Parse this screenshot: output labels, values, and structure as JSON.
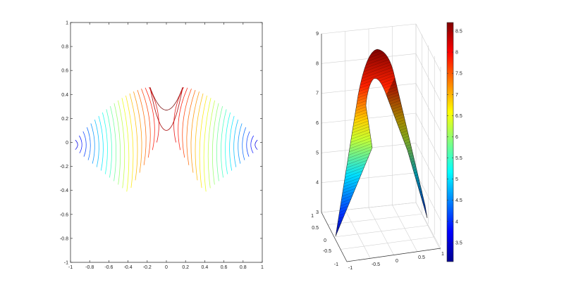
{
  "chart_data": [
    {
      "type": "contour",
      "xlim": [
        -1,
        1
      ],
      "ylim": [
        -1,
        1
      ],
      "xticks": [
        "-1",
        "-0.8",
        "-0.6",
        "-0.4",
        "-0.2",
        "0",
        "0.2",
        "0.4",
        "0.6",
        "0.8",
        "1"
      ],
      "yticks": [
        "-1",
        "-0.8",
        "-0.6",
        "-0.4",
        "-0.2",
        "0",
        "0.2",
        "0.4",
        "0.6",
        "0.8",
        "1"
      ],
      "colormap": "jet",
      "central_contours": [
        {
          "vertex_y": 0.27
        },
        {
          "vertex_y": 0.1
        }
      ],
      "side_contour_count": 20,
      "grid": false
    },
    {
      "type": "surface",
      "xlim": [
        -1,
        1
      ],
      "ylim": [
        -1,
        1
      ],
      "zlim": [
        3,
        9
      ],
      "xticks": [
        "-1",
        "-0.5",
        "0",
        "0.5",
        "1"
      ],
      "yticks": [
        "-1",
        "-0.5",
        "0",
        "0.5",
        "1"
      ],
      "zticks": [
        "3",
        "4",
        "5",
        "6",
        "7",
        "8",
        "9"
      ],
      "colormap": "jet",
      "grid": true,
      "colorbar": {
        "range": [
          3.05,
          8.7
        ],
        "ticks": [
          "3.5",
          "4",
          "4.5",
          "5",
          "5.5",
          "6",
          "6.5",
          "7",
          "7.5",
          "8",
          "8.5"
        ],
        "placement": "right"
      }
    }
  ]
}
